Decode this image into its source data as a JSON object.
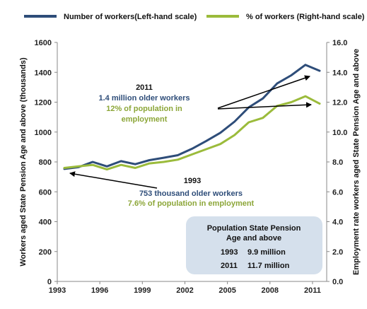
{
  "chart_data": {
    "type": "line",
    "legend": {
      "placement": "top"
    },
    "grid": false,
    "x_ticks": [
      "1993",
      "1996",
      "1999",
      "2002",
      "2005",
      "2008",
      "2011"
    ],
    "xlim": [
      1993,
      2012
    ],
    "ylabel_left": "Workers aged State Pension Age and above (thousands)",
    "ylabel_right": "Employment rate workers aged State Pension Age and above",
    "ylim_left": [
      0,
      1600
    ],
    "ylim_right": [
      0,
      16
    ],
    "y_ticks_left": [
      "0",
      "200",
      "400",
      "600",
      "800",
      "1000",
      "1200",
      "1400",
      "1600"
    ],
    "y_ticks_right": [
      "0.0",
      "2.0",
      "4.0",
      "6.0",
      "8.0",
      "10.0",
      "12.0",
      "14.0",
      "16.0"
    ],
    "x": [
      1993.5,
      1994.5,
      1995.5,
      1996.5,
      1997.5,
      1998.5,
      1999.5,
      2000.5,
      2001.5,
      2002.5,
      2003.5,
      2004.5,
      2005.5,
      2006.5,
      2007.5,
      2008.5,
      2009.5,
      2010.5,
      2011.5
    ],
    "series": [
      {
        "name": "Number of workers(Left-hand scale)",
        "axis": "left",
        "color": "#2e4d79",
        "values": [
          753,
          765,
          800,
          770,
          805,
          785,
          812,
          828,
          845,
          888,
          940,
          995,
          1070,
          1165,
          1225,
          1325,
          1380,
          1450,
          1410
        ]
      },
      {
        "name": "% of workers (Right-hand scale)",
        "axis": "right",
        "color": "#9bbb3b",
        "values": [
          7.6,
          7.7,
          7.8,
          7.5,
          7.8,
          7.6,
          7.9,
          8.0,
          8.15,
          8.5,
          8.85,
          9.2,
          9.8,
          10.65,
          10.95,
          11.75,
          12.0,
          12.4,
          11.9
        ]
      }
    ],
    "annotations": {
      "a2011": {
        "year": "2011",
        "line1": "1.4 million older workers",
        "line2": "12% of population in",
        "line3": "employment"
      },
      "a1993": {
        "year": "1993",
        "line1": "753 thousand older workers",
        "line2": "7.6% of population in employment"
      }
    },
    "box": {
      "title1": "Population State Pension",
      "title2": "Age and above",
      "rows": [
        {
          "year": "1993",
          "value": "9.9 million"
        },
        {
          "year": "2011",
          "value": "11.7 million"
        }
      ]
    }
  }
}
